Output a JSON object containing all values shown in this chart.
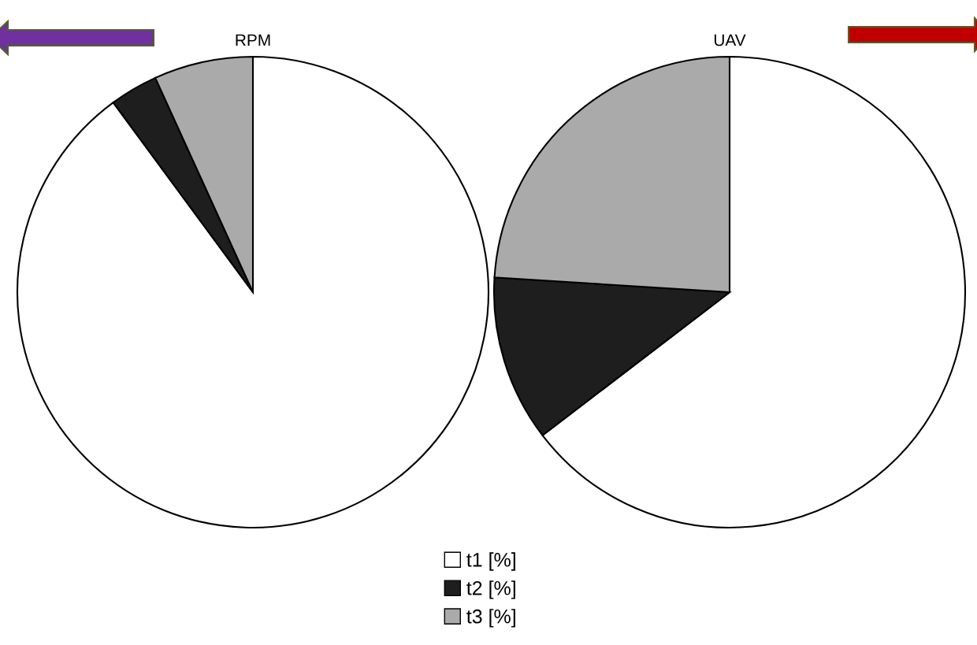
{
  "chart_data": [
    {
      "type": "pie",
      "title": "RPM",
      "categories": [
        "t1 [%]",
        "t2 [%]",
        "t3 [%]"
      ],
      "values": [
        89.9,
        3.3,
        6.8
      ],
      "colors": [
        "#ffffff",
        "#1e1e1e",
        "#aaaaaa"
      ],
      "legend": "bottom"
    },
    {
      "type": "pie",
      "title": "UAV",
      "categories": [
        null,
        null,
        null
      ],
      "values": [
        64.6,
        11.4,
        24.0
      ],
      "colors": [
        "#ffffff",
        "#1e1e1e",
        "#aaaaaa"
      ],
      "legend": false
    }
  ]
}
